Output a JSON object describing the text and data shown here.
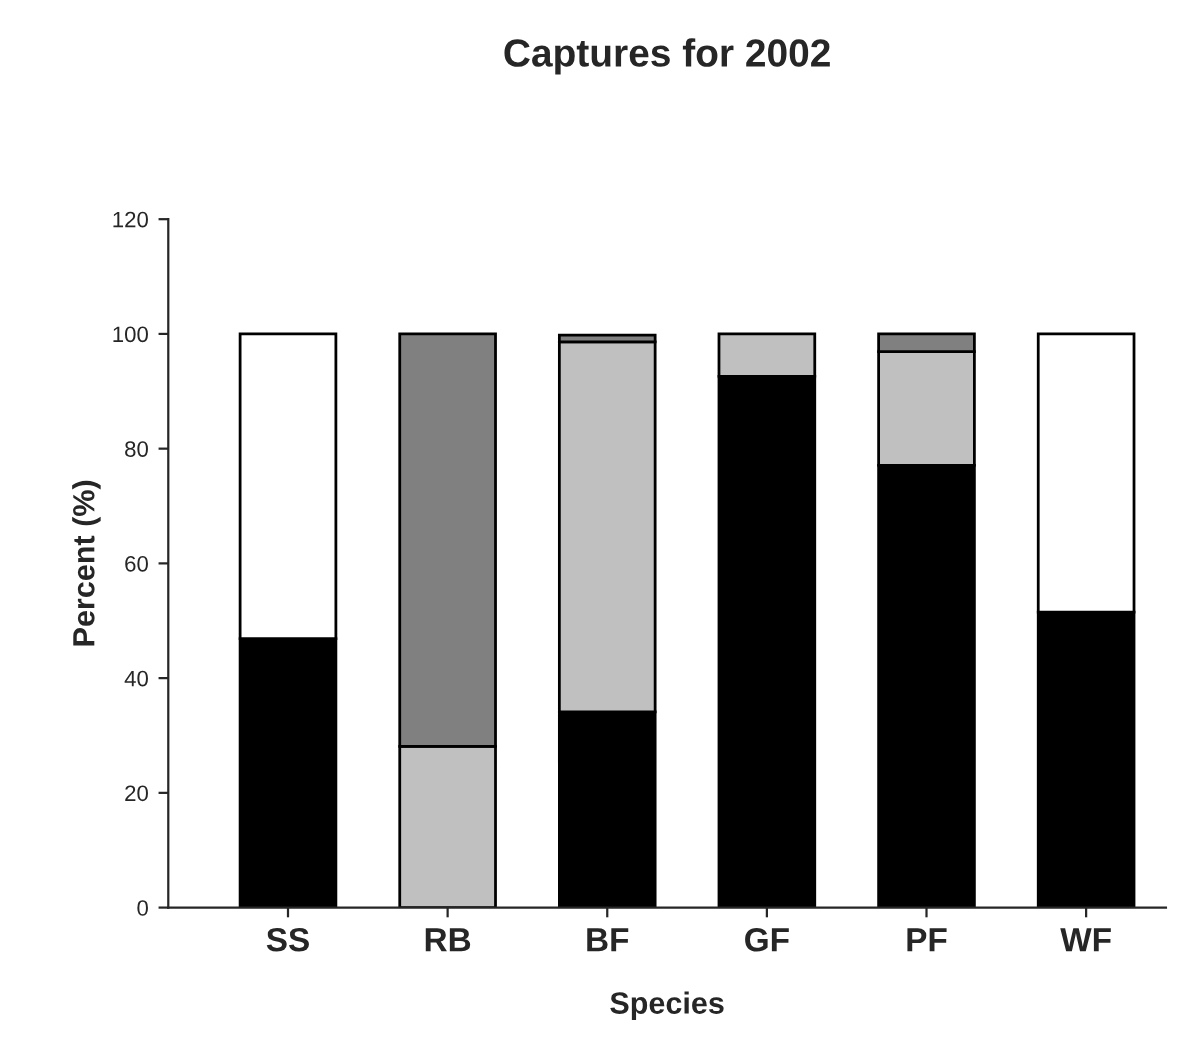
{
  "chart_data": {
    "type": "bar",
    "stacked": true,
    "title": "Captures for 2002",
    "xlabel": "Species",
    "ylabel": "Percent (%)",
    "categories": [
      "SS",
      "RB",
      "BF",
      "GF",
      "PF",
      "WF"
    ],
    "series": [
      {
        "color": "#000000",
        "values": [
          46.9,
          0,
          34.1,
          92.6,
          77.1,
          51.5
        ]
      },
      {
        "color": "#c0c0c0",
        "values": [
          0,
          28.1,
          64.5,
          7.4,
          19.8,
          0
        ]
      },
      {
        "color": "#808080",
        "values": [
          0,
          71.9,
          1.2,
          0,
          3.1,
          0
        ]
      },
      {
        "color": "#ffffff",
        "values": [
          53.1,
          0,
          0,
          0,
          0,
          48.5
        ]
      }
    ],
    "ylim": [
      0,
      120
    ],
    "yticks": [
      0,
      20,
      40,
      60,
      80,
      100,
      120
    ],
    "grid": false,
    "legend": false
  }
}
